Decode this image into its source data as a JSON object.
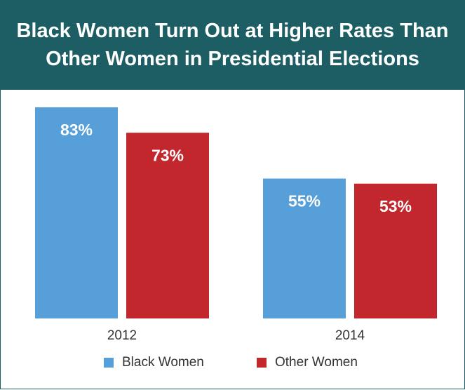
{
  "title": "Black Women Turn Out at Higher Rates Than Other Women in Presidential Elections",
  "colors": {
    "header_bg": "#1c5e63",
    "black_women": "#569fd8",
    "other_women": "#c1272d"
  },
  "chart_data": {
    "type": "bar",
    "title": "Black Women Turn Out at Higher Rates Than Other Women in Presidential Elections",
    "categories": [
      "2012",
      "2014"
    ],
    "series": [
      {
        "name": "Black Women",
        "values": [
          83,
          55
        ],
        "labels": [
          "83%",
          "55%"
        ],
        "color": "#569fd8"
      },
      {
        "name": "Other Women",
        "values": [
          73,
          53
        ],
        "labels": [
          "73%",
          "53%"
        ],
        "color": "#c1272d"
      }
    ],
    "ylim": [
      0,
      83
    ],
    "grid": false,
    "legend": "bottom-center"
  }
}
